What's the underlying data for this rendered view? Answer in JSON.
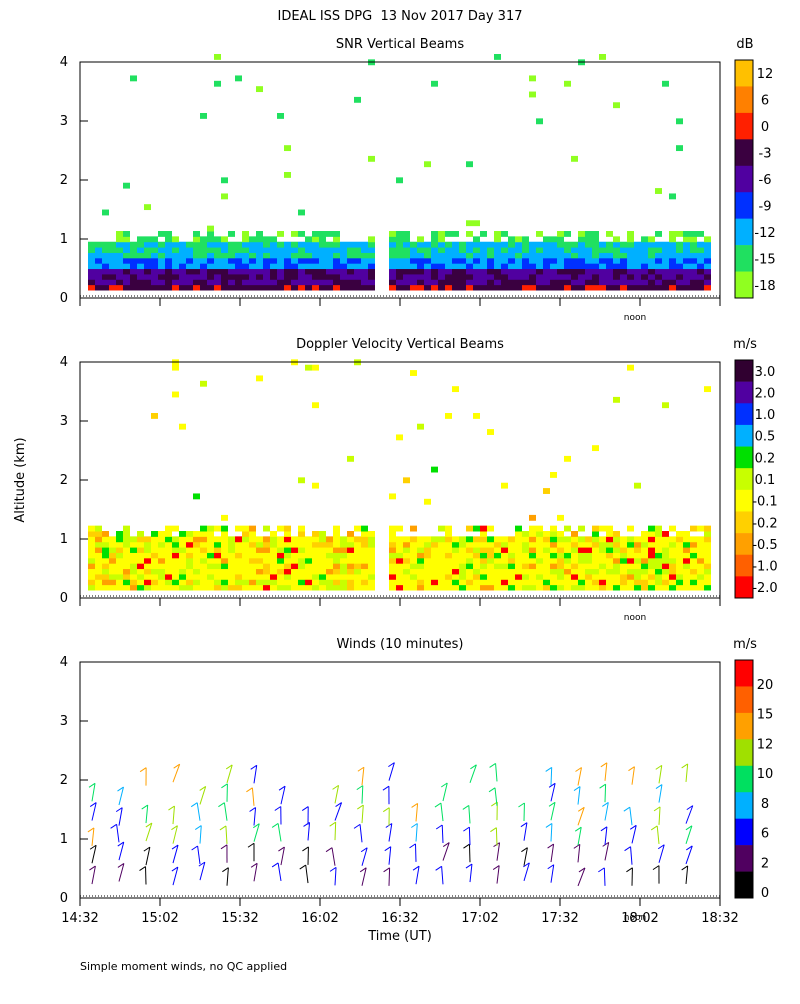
{
  "header": {
    "title": "IDEAL ISS DPG  13 Nov 2017 Day 317"
  },
  "chart_data": [
    {
      "type": "heatmap",
      "title": "SNR Vertical Beams",
      "unit": "dB",
      "ylim": [
        0,
        4
      ],
      "yticks": [
        0,
        1,
        2,
        3,
        4
      ],
      "marker": "noon",
      "colorbar": {
        "colors": [
          "#ffc000",
          "#ff8000",
          "#ff2000",
          "#3a0040",
          "#5000a0",
          "#0030ff",
          "#00b0ff",
          "#20e060",
          "#90ff20"
        ],
        "ticks": [
          12,
          6,
          0,
          -3,
          -6,
          -9,
          -12,
          -15,
          -18
        ]
      }
    },
    {
      "type": "heatmap",
      "title": "Doppler Velocity Vertical Beams",
      "unit": "m/s",
      "ylim": [
        0,
        4
      ],
      "yticks": [
        0,
        1,
        2,
        3,
        4
      ],
      "marker": "noon",
      "colorbar": {
        "colors": [
          "#300030",
          "#5000a0",
          "#0030ff",
          "#00b0ff",
          "#00e000",
          "#c8ff00",
          "#ffff00",
          "#ffd000",
          "#ffa000",
          "#ff6000",
          "#ff0000"
        ],
        "ticks": [
          {
            "value": 3,
            "label": "3.0"
          },
          {
            "value": 2,
            "label": "2.0"
          },
          {
            "value": 1,
            "label": "1.0"
          },
          0.5,
          0.2,
          0.1,
          -0.1,
          -0.2,
          -0.5,
          {
            "value": -1,
            "label": "-1.0"
          },
          {
            "value": -2,
            "label": "-2.0"
          }
        ]
      }
    },
    {
      "type": "barbs",
      "title": "Winds (10 minutes)",
      "unit": "m/s",
      "ylim": [
        0,
        4
      ],
      "yticks": [
        0,
        1,
        2,
        3,
        4
      ],
      "marker": "noon",
      "colorbar": {
        "colors": [
          "#ff0000",
          "#ff6000",
          "#ffa000",
          "#a0e000",
          "#00e060",
          "#00b0ff",
          "#0000ff",
          "#500060",
          "#000000"
        ],
        "ticks": [
          20,
          15,
          12,
          10,
          8,
          6,
          2,
          0
        ]
      },
      "x_tick_labels": [
        "14:32",
        "15:02",
        "15:32",
        "16:02",
        "16:32",
        "17:02",
        "17:32",
        "18:02",
        "18:32"
      ],
      "xlabel": "Time (UT)"
    }
  ],
  "ylabel": "Altitude (km)",
  "footnote": "Simple moment winds, no QC applied"
}
